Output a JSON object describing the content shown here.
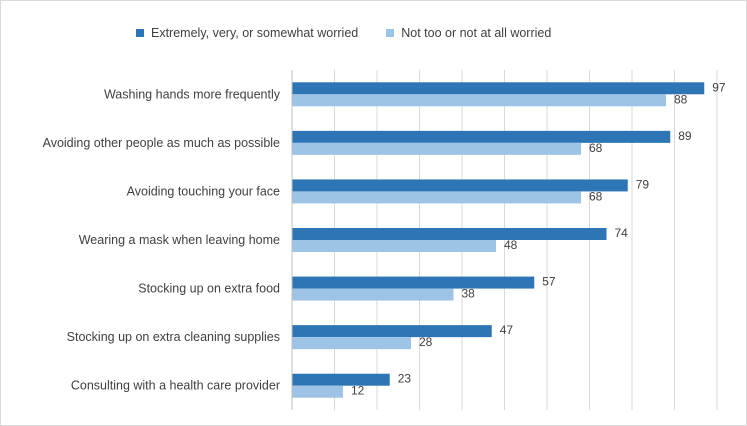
{
  "chart_data": {
    "type": "bar",
    "orientation": "horizontal",
    "categories": [
      "Washing hands more frequently",
      "Avoiding other people as much as possible",
      "Avoiding touching your face",
      "Wearing a mask when leaving home",
      "Stocking up on extra food",
      "Stocking up on extra cleaning supplies",
      "Consulting with a health care provider"
    ],
    "series": [
      {
        "name": "Extremely, very, or somewhat worried",
        "color": "#2e75b6",
        "values": [
          97,
          89,
          79,
          74,
          57,
          47,
          23
        ]
      },
      {
        "name": "Not too or not at all worried",
        "color": "#9dc3e6",
        "values": [
          88,
          68,
          68,
          48,
          38,
          28,
          12
        ]
      }
    ],
    "xlim": [
      0,
      100
    ],
    "grid": true,
    "legend_position": "top",
    "data_labels": true
  }
}
